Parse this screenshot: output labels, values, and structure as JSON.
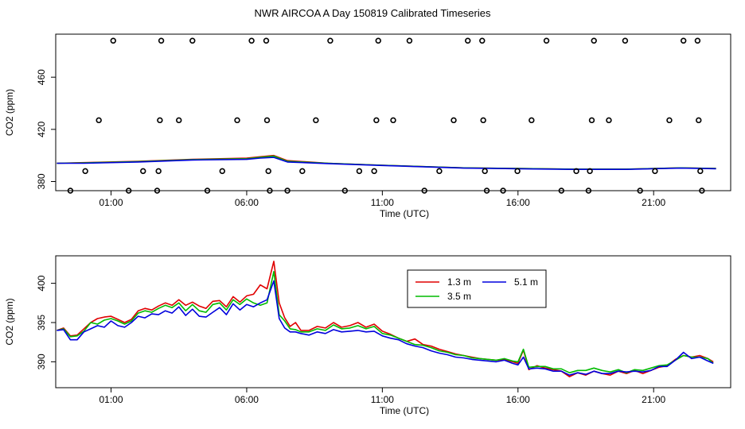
{
  "title": "NWR AIRCOA A  Day 150819  Calibrated Timeseries",
  "colors": {
    "red": "#e00000",
    "green": "#00bb00",
    "blue": "#0000dd",
    "axis": "#000000"
  },
  "chart_data": [
    {
      "type": "scatter",
      "xlabel": "Time (UTC)",
      "ylabel": "CO2 (ppm)",
      "x_tick_labels": [
        "01:00",
        "06:00",
        "11:00",
        "16:00",
        "21:00"
      ],
      "x_ticks_hours": [
        1,
        6,
        11,
        16,
        21
      ],
      "y_ticks": [
        380,
        420,
        460
      ],
      "xlim_hours": [
        -1.04,
        23.84
      ],
      "ylim": [
        373,
        493
      ],
      "grid": false,
      "points": [
        {
          "x": -0.5,
          "y": 373
        },
        {
          "x": 0.05,
          "y": 388
        },
        {
          "x": 0.55,
          "y": 427
        },
        {
          "x": 1.08,
          "y": 488
        },
        {
          "x": 1.65,
          "y": 373
        },
        {
          "x": 2.18,
          "y": 388
        },
        {
          "x": 2.7,
          "y": 373
        },
        {
          "x": 2.75,
          "y": 388
        },
        {
          "x": 2.8,
          "y": 427
        },
        {
          "x": 2.85,
          "y": 488
        },
        {
          "x": 3.5,
          "y": 427
        },
        {
          "x": 4.0,
          "y": 488
        },
        {
          "x": 4.55,
          "y": 373
        },
        {
          "x": 5.1,
          "y": 388
        },
        {
          "x": 5.65,
          "y": 427
        },
        {
          "x": 6.18,
          "y": 488
        },
        {
          "x": 6.72,
          "y": 488
        },
        {
          "x": 6.75,
          "y": 427
        },
        {
          "x": 6.8,
          "y": 388
        },
        {
          "x": 6.85,
          "y": 373
        },
        {
          "x": 7.5,
          "y": 373
        },
        {
          "x": 8.05,
          "y": 388
        },
        {
          "x": 8.55,
          "y": 427
        },
        {
          "x": 9.08,
          "y": 488
        },
        {
          "x": 9.62,
          "y": 373
        },
        {
          "x": 10.15,
          "y": 388
        },
        {
          "x": 10.7,
          "y": 388
        },
        {
          "x": 10.78,
          "y": 427
        },
        {
          "x": 10.85,
          "y": 488
        },
        {
          "x": 11.4,
          "y": 427
        },
        {
          "x": 12.0,
          "y": 488
        },
        {
          "x": 12.55,
          "y": 373
        },
        {
          "x": 13.1,
          "y": 388
        },
        {
          "x": 13.63,
          "y": 427
        },
        {
          "x": 14.15,
          "y": 488
        },
        {
          "x": 14.68,
          "y": 488
        },
        {
          "x": 14.72,
          "y": 427
        },
        {
          "x": 14.78,
          "y": 388
        },
        {
          "x": 14.85,
          "y": 373
        },
        {
          "x": 15.45,
          "y": 373
        },
        {
          "x": 15.98,
          "y": 388
        },
        {
          "x": 16.5,
          "y": 427
        },
        {
          "x": 17.05,
          "y": 488
        },
        {
          "x": 17.6,
          "y": 373
        },
        {
          "x": 18.15,
          "y": 388
        },
        {
          "x": 18.6,
          "y": 373
        },
        {
          "x": 18.65,
          "y": 388
        },
        {
          "x": 18.72,
          "y": 427
        },
        {
          "x": 18.8,
          "y": 488
        },
        {
          "x": 19.35,
          "y": 427
        },
        {
          "x": 19.95,
          "y": 488
        },
        {
          "x": 20.5,
          "y": 373
        },
        {
          "x": 21.05,
          "y": 388
        },
        {
          "x": 21.58,
          "y": 427
        },
        {
          "x": 22.1,
          "y": 488
        },
        {
          "x": 22.62,
          "y": 488
        },
        {
          "x": 22.66,
          "y": 427
        },
        {
          "x": 22.72,
          "y": 388
        },
        {
          "x": 22.78,
          "y": 373
        }
      ],
      "series": [
        {
          "color": "red",
          "x": [
            -1,
            0,
            2,
            4,
            6,
            6.5,
            7,
            7.5,
            9,
            11,
            14,
            16,
            18,
            20,
            22,
            23.3
          ],
          "values": [
            394,
            394.5,
            395.5,
            397,
            398,
            399,
            400,
            396,
            394,
            392.5,
            390.5,
            390,
            389.5,
            389.5,
            390.5,
            390
          ]
        },
        {
          "color": "green",
          "x": [
            -1,
            0,
            2,
            4,
            6,
            6.5,
            7,
            7.5,
            9,
            11,
            14,
            16,
            18,
            20,
            22,
            23.3
          ],
          "values": [
            394,
            394.3,
            395.3,
            396.8,
            397.5,
            398.5,
            399.5,
            395.5,
            394,
            392.5,
            390.5,
            390,
            389.5,
            389.5,
            390.5,
            390
          ]
        },
        {
          "color": "blue",
          "x": [
            -1,
            0,
            2,
            4,
            6,
            6.5,
            7,
            7.5,
            9,
            11,
            14,
            16,
            18,
            20,
            22,
            23.3
          ],
          "values": [
            394,
            394,
            395,
            396.5,
            397,
            398,
            398.5,
            395,
            393.8,
            392.3,
            390.3,
            389.8,
            389.3,
            389.3,
            390.3,
            389.8
          ]
        }
      ]
    },
    {
      "type": "line",
      "xlabel": "Time (UTC)",
      "ylabel": "CO2 (ppm)",
      "x_tick_labels": [
        "01:00",
        "06:00",
        "11:00",
        "16:00",
        "21:00"
      ],
      "x_ticks_hours": [
        1,
        6,
        11,
        16,
        21
      ],
      "y_ticks": [
        390,
        395,
        400
      ],
      "xlim_hours": [
        -1.04,
        23.84
      ],
      "ylim": [
        386.7,
        403.5
      ],
      "grid": false,
      "legend": {
        "placement": "top-right",
        "entries": [
          "1.3 m",
          "5.1 m",
          "3.5 m"
        ]
      },
      "series": [
        {
          "name": "1.3 m",
          "color": "red",
          "x": [
            -1,
            -0.75,
            -0.5,
            -0.25,
            0,
            0.25,
            0.5,
            0.75,
            1,
            1.25,
            1.5,
            1.75,
            2,
            2.25,
            2.5,
            2.75,
            3,
            3.25,
            3.5,
            3.75,
            4,
            4.25,
            4.5,
            4.75,
            5,
            5.25,
            5.5,
            5.75,
            6,
            6.25,
            6.5,
            6.75,
            7,
            7.2,
            7.4,
            7.6,
            7.8,
            8,
            8.3,
            8.6,
            8.9,
            9.2,
            9.5,
            9.8,
            10.1,
            10.4,
            10.7,
            11,
            11.3,
            11.6,
            11.9,
            12.2,
            12.5,
            12.8,
            13.1,
            13.4,
            13.7,
            14,
            14.3,
            14.6,
            14.9,
            15.2,
            15.5,
            15.8,
            16,
            16.2,
            16.4,
            16.7,
            17,
            17.3,
            17.6,
            17.9,
            18.2,
            18.5,
            18.8,
            19.1,
            19.4,
            19.7,
            20,
            20.3,
            20.6,
            20.9,
            21.2,
            21.5,
            21.8,
            22.1,
            22.4,
            22.7,
            23,
            23.2
          ],
          "values": [
            394,
            394.3,
            393.3,
            393.4,
            394.2,
            395,
            395.5,
            395.7,
            395.8,
            395.4,
            395,
            395.4,
            396.5,
            396.8,
            396.6,
            397.1,
            397.5,
            397.2,
            397.9,
            397.2,
            397.6,
            397.1,
            396.8,
            397.7,
            397.8,
            397,
            398.3,
            397.6,
            398.4,
            398.6,
            399.8,
            399.3,
            402.8,
            397.5,
            395.6,
            394.5,
            395,
            394,
            394,
            394.5,
            394.3,
            395,
            394.4,
            394.6,
            395,
            394.4,
            394.8,
            393.9,
            393.5,
            393,
            392.6,
            392.9,
            392.2,
            392,
            391.6,
            391.3,
            391,
            390.8,
            390.6,
            390.4,
            390.3,
            390.2,
            390.3,
            390,
            389.8,
            391.5,
            389,
            389.5,
            389.2,
            389,
            388.8,
            388.1,
            388.6,
            388.3,
            388.8,
            388.5,
            388.3,
            388.8,
            388.5,
            388.9,
            388.5,
            388.9,
            389.3,
            389.5,
            390.3,
            390.8,
            390.6,
            390.8,
            390.4,
            390
          ]
        },
        {
          "name": "3.5 m",
          "color": "green",
          "x": [
            -1,
            -0.75,
            -0.5,
            -0.25,
            0,
            0.25,
            0.5,
            0.75,
            1,
            1.25,
            1.5,
            1.75,
            2,
            2.25,
            2.5,
            2.75,
            3,
            3.25,
            3.5,
            3.75,
            4,
            4.25,
            4.5,
            4.75,
            5,
            5.25,
            5.5,
            5.75,
            6,
            6.25,
            6.5,
            6.75,
            7,
            7.2,
            7.4,
            7.6,
            7.8,
            8,
            8.3,
            8.6,
            8.9,
            9.2,
            9.5,
            9.8,
            10.1,
            10.4,
            10.7,
            11,
            11.3,
            11.6,
            11.9,
            12.2,
            12.5,
            12.8,
            13.1,
            13.4,
            13.7,
            14,
            14.3,
            14.6,
            14.9,
            15.2,
            15.5,
            15.8,
            16,
            16.2,
            16.4,
            16.7,
            17,
            17.3,
            17.6,
            17.9,
            18.2,
            18.5,
            18.8,
            19.1,
            19.4,
            19.7,
            20,
            20.3,
            20.6,
            20.9,
            21.2,
            21.5,
            21.8,
            22.1,
            22.4,
            22.7,
            23,
            23.2
          ],
          "values": [
            394,
            394.2,
            393.2,
            393.3,
            393.9,
            395,
            394.8,
            395.3,
            395.5,
            395.2,
            394.8,
            395.2,
            396.2,
            396.5,
            396.3,
            396.8,
            397.2,
            396.9,
            397.5,
            396.5,
            397.3,
            396.5,
            396.3,
            397.3,
            397.5,
            396.6,
            397.9,
            397.3,
            398,
            397.5,
            397.2,
            397.5,
            401.5,
            396,
            395.2,
            394.2,
            394.1,
            393.8,
            393.8,
            394.2,
            394,
            394.7,
            394.2,
            394.3,
            394.6,
            394.2,
            394.5,
            393.6,
            393.4,
            393,
            392.6,
            392.2,
            392.1,
            391.8,
            391.4,
            391.2,
            390.9,
            390.8,
            390.5,
            390.4,
            390.3,
            390.2,
            390.4,
            390.1,
            390,
            391.6,
            389.3,
            389.4,
            389.4,
            389.1,
            389.1,
            388.6,
            388.9,
            388.9,
            389.2,
            388.9,
            388.7,
            389,
            388.6,
            389,
            388.9,
            389.2,
            389.5,
            389.6,
            390.2,
            390.8,
            390.6,
            390.6,
            390.4,
            389.8
          ]
        },
        {
          "name": "5.1 m",
          "color": "blue",
          "x": [
            -1,
            -0.75,
            -0.5,
            -0.25,
            0,
            0.25,
            0.5,
            0.75,
            1,
            1.25,
            1.5,
            1.75,
            2,
            2.25,
            2.5,
            2.75,
            3,
            3.25,
            3.5,
            3.75,
            4,
            4.25,
            4.5,
            4.75,
            5,
            5.25,
            5.5,
            5.75,
            6,
            6.25,
            6.5,
            6.75,
            7,
            7.2,
            7.4,
            7.6,
            7.8,
            8,
            8.3,
            8.6,
            8.9,
            9.2,
            9.5,
            9.8,
            10.1,
            10.4,
            10.7,
            11,
            11.3,
            11.6,
            11.9,
            12.2,
            12.5,
            12.8,
            13.1,
            13.4,
            13.7,
            14,
            14.3,
            14.6,
            14.9,
            15.2,
            15.5,
            15.8,
            16,
            16.2,
            16.4,
            16.7,
            17,
            17.3,
            17.6,
            17.9,
            18.2,
            18.5,
            18.8,
            19.1,
            19.4,
            19.7,
            20,
            20.3,
            20.6,
            20.9,
            21.2,
            21.5,
            21.8,
            22.1,
            22.4,
            22.7,
            23,
            23.2
          ],
          "values": [
            394,
            394.1,
            392.8,
            392.8,
            393.8,
            394.2,
            394.6,
            394.4,
            395.2,
            394.6,
            394.4,
            395,
            395.8,
            395.6,
            396.1,
            396,
            396.5,
            396.2,
            397,
            395.9,
            396.7,
            395.8,
            395.7,
            396.3,
            396.9,
            396,
            397.4,
            396.6,
            397.3,
            397,
            397.5,
            397.9,
            400.3,
            395.5,
            394.3,
            393.8,
            393.8,
            393.6,
            393.4,
            393.8,
            393.6,
            394.1,
            393.8,
            393.9,
            394,
            393.8,
            393.9,
            393.3,
            393,
            392.8,
            392.3,
            392,
            391.8,
            391.4,
            391.1,
            390.9,
            390.6,
            390.5,
            390.3,
            390.2,
            390.1,
            390,
            390.2,
            389.8,
            389.6,
            390.6,
            389.1,
            389.2,
            389.1,
            388.8,
            388.8,
            388.3,
            388.6,
            388.4,
            388.8,
            388.5,
            388.5,
            388.8,
            388.7,
            388.8,
            388.7,
            388.9,
            389.4,
            389.4,
            390.2,
            391.2,
            390.4,
            390.6,
            390.1,
            389.8
          ]
        }
      ]
    }
  ]
}
